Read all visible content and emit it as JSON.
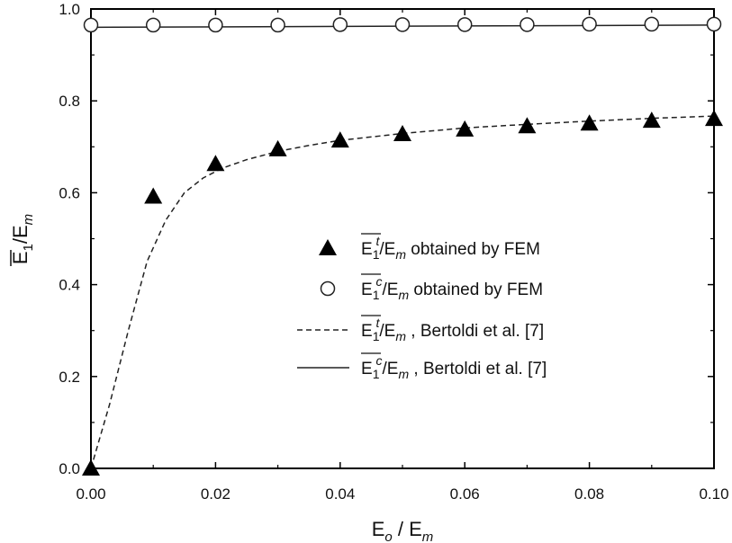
{
  "chart_data": {
    "type": "scatter",
    "title": "",
    "xlabel": {
      "main": "E",
      "sub1": "o",
      "mid": " / E",
      "sub2": "m"
    },
    "ylabel": {
      "main": "E",
      "sub1": "1",
      "mid": "/E",
      "sub2": "m"
    },
    "xlim": [
      0.0,
      0.1
    ],
    "ylim": [
      0.0,
      1.0
    ],
    "xticks": [
      0.0,
      0.02,
      0.04,
      0.06,
      0.08,
      0.1
    ],
    "xtick_labels": [
      "0.00",
      "0.02",
      "0.04",
      "0.06",
      "0.08",
      "0.10"
    ],
    "yticks": [
      0.0,
      0.2,
      0.4,
      0.6,
      0.8,
      1.0
    ],
    "ytick_labels": [
      "0.0",
      "0.2",
      "0.4",
      "0.6",
      "0.8",
      "1.0"
    ],
    "grid": false,
    "legend_position": "center-right",
    "series": [
      {
        "name": "E1t/Em obtained by FEM",
        "marker": "filled-triangle",
        "x": [
          0.0,
          0.01,
          0.02,
          0.03,
          0.04,
          0.05,
          0.06,
          0.07,
          0.08,
          0.09,
          0.1
        ],
        "y": [
          0.0,
          0.592,
          0.663,
          0.695,
          0.714,
          0.728,
          0.738,
          0.745,
          0.751,
          0.757,
          0.761
        ]
      },
      {
        "name": "E1c/Em obtained by FEM",
        "marker": "open-circle",
        "x": [
          0.0,
          0.01,
          0.02,
          0.03,
          0.04,
          0.05,
          0.06,
          0.07,
          0.08,
          0.09,
          0.1
        ],
        "y": [
          0.965,
          0.965,
          0.965,
          0.965,
          0.966,
          0.966,
          0.966,
          0.966,
          0.967,
          0.967,
          0.967
        ]
      },
      {
        "name": "E1t/Em, Bertoldi et al. [7]",
        "line": "dashed",
        "x": [
          0.0,
          0.003,
          0.006,
          0.009,
          0.012,
          0.015,
          0.018,
          0.021,
          0.025,
          0.03,
          0.035,
          0.04,
          0.05,
          0.06,
          0.07,
          0.08,
          0.09,
          0.1
        ],
        "y": [
          0.0,
          0.14,
          0.3,
          0.45,
          0.54,
          0.6,
          0.632,
          0.653,
          0.672,
          0.69,
          0.703,
          0.714,
          0.729,
          0.741,
          0.749,
          0.756,
          0.762,
          0.767
        ]
      },
      {
        "name": "E1c/Em, Bertoldi et al. [7]",
        "line": "solid",
        "x": [
          0.0,
          0.1
        ],
        "y": [
          0.96,
          0.965
        ]
      }
    ],
    "legend": [
      {
        "symbol": "triangle",
        "sup": "t",
        "tail": " obtained by FEM"
      },
      {
        "symbol": "circle",
        "sup": "c",
        "tail": " obtained by FEM"
      },
      {
        "symbol": "dashed",
        "sup": "t",
        "tail": " , Bertoldi et al. [7]"
      },
      {
        "symbol": "solid",
        "sup": "c",
        "tail": " , Bertoldi et al. [7]"
      }
    ],
    "legend_label": {
      "main": "E",
      "sub1": "1",
      "mid": "/E",
      "sub2": "m"
    }
  }
}
